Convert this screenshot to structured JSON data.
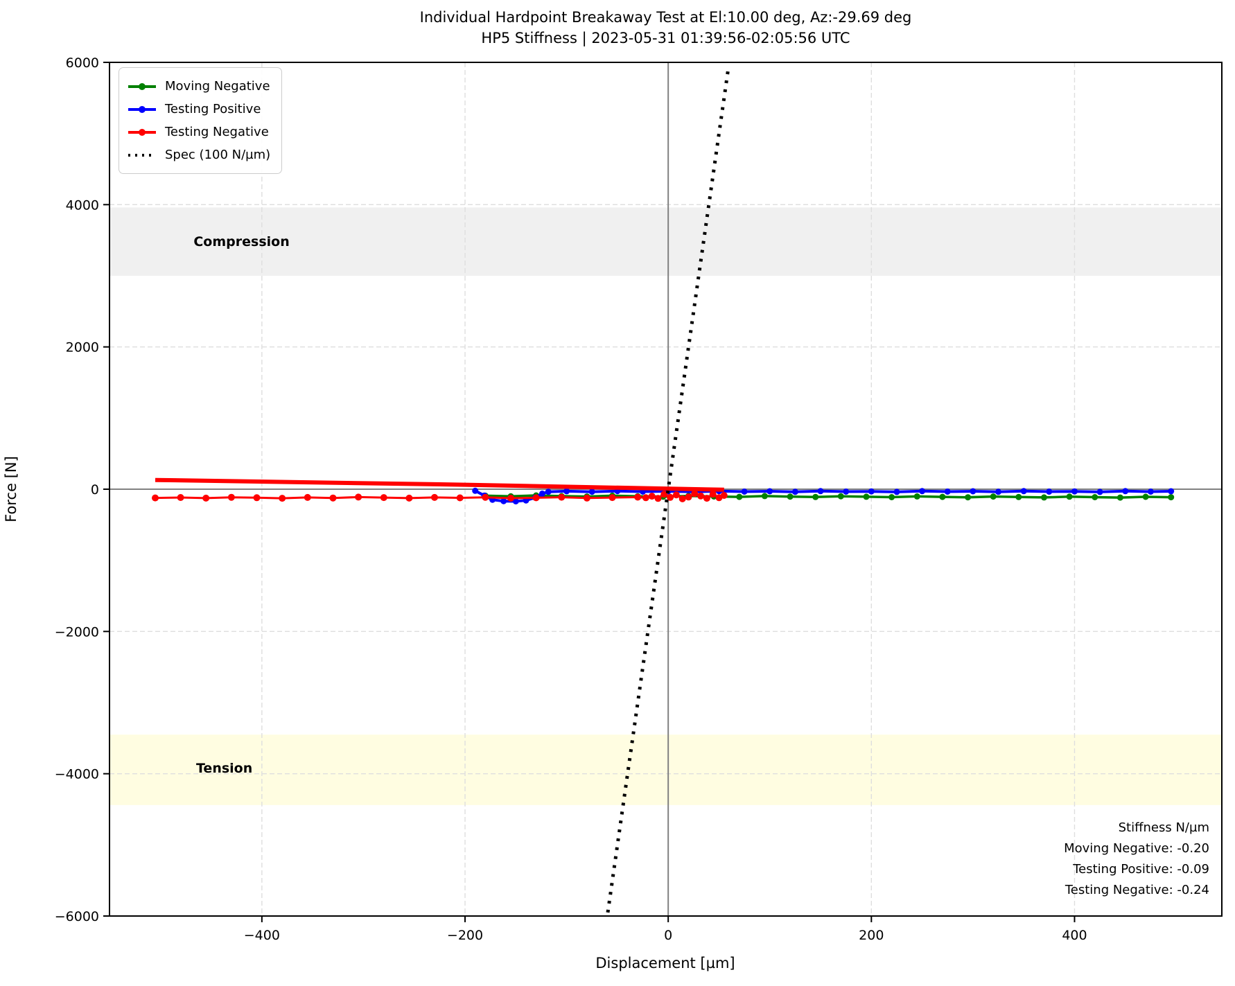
{
  "title": {
    "line1": "Individual Hardpoint Breakaway Test at El:10.00 deg, Az:-29.69 deg",
    "line2": "HP5 Stiffness | 2023-05-31 01:39:56-02:05:56 UTC"
  },
  "axes": {
    "xlabel": "Displacement [µm]",
    "ylabel": "Force [N]"
  },
  "legend": {
    "items": [
      {
        "label": "Moving Negative",
        "color": "#008000",
        "style": "line-marker"
      },
      {
        "label": "Testing Positive",
        "color": "#0000ff",
        "style": "line-marker"
      },
      {
        "label": "Testing Negative",
        "color": "#ff0000",
        "style": "line-marker"
      },
      {
        "label": "Spec (100 N/µm)",
        "color": "#000000",
        "style": "dotted"
      }
    ]
  },
  "annotations": {
    "stiffness_header": "Stiffness N/µm",
    "stiffness_lines": [
      "Moving Negative: -0.20",
      "Testing Positive: -0.09",
      "Testing Negative: -0.24"
    ],
    "compression_label": "Compression",
    "tension_label": "Tension"
  },
  "chart_data": {
    "type": "line",
    "title": "Individual Hardpoint Breakaway Test at El:10.00 deg, Az:-29.69 deg",
    "subtitle": "HP5 Stiffness | 2023-05-31 01:39:56-02:05:56 UTC",
    "xlabel": "Displacement [µm]",
    "ylabel": "Force [N]",
    "xlim": [
      -550,
      545
    ],
    "ylim": [
      -6000,
      6000
    ],
    "xticks": {
      "values": [
        -400,
        -200,
        0,
        200,
        400
      ],
      "labels": [
        "−400",
        "−200",
        "0",
        "200",
        "400"
      ]
    },
    "yticks": {
      "values": [
        -6000,
        -4000,
        -2000,
        0,
        2000,
        4000,
        6000
      ],
      "labels": [
        "−6000",
        "−4000",
        "−2000",
        "0",
        "2000",
        "4000",
        "6000"
      ]
    },
    "grid": {
      "on": true,
      "color": "#dedede",
      "dash": "7 4"
    },
    "zero_lines": {
      "color": "#808080",
      "width": 2
    },
    "bands": [
      {
        "name": "compression",
        "y1": 3000,
        "y2": 3960,
        "color": "#f0f0f0",
        "label": "Compression",
        "label_x": -420,
        "label_y": 3480
      },
      {
        "name": "tension",
        "y1": -4440,
        "y2": -3450,
        "color": "#fffde1",
        "label": "Tension",
        "label_x": -437,
        "label_y": -3930
      }
    ],
    "legend_position": "upper-left",
    "series": [
      {
        "name": "Moving Negative",
        "color": "#008000",
        "line_width": 3.5,
        "marker_radius": 4.5,
        "points": [
          [
            -180,
            -92
          ],
          [
            -155,
            -100
          ],
          [
            -130,
            -88
          ],
          [
            -105,
            -97
          ],
          [
            -80,
            -103
          ],
          [
            -55,
            -92
          ],
          [
            -30,
            -99
          ],
          [
            -5,
            -105
          ],
          [
            20,
            -95
          ],
          [
            45,
            -102
          ],
          [
            70,
            -108
          ],
          [
            95,
            -96
          ],
          [
            120,
            -104
          ],
          [
            145,
            -110
          ],
          [
            170,
            -99
          ],
          [
            195,
            -106
          ],
          [
            220,
            -112
          ],
          [
            245,
            -101
          ],
          [
            270,
            -108
          ],
          [
            295,
            -114
          ],
          [
            320,
            -103
          ],
          [
            345,
            -110
          ],
          [
            370,
            -116
          ],
          [
            395,
            -105
          ],
          [
            420,
            -112
          ],
          [
            445,
            -118
          ],
          [
            470,
            -107
          ],
          [
            495,
            -113
          ]
        ]
      },
      {
        "name": "Testing Positive",
        "color": "#0000ff",
        "line_width": 4,
        "marker_radius": 4.5,
        "points": [
          [
            -190,
            -22
          ],
          [
            -181,
            -90
          ],
          [
            -173,
            -148
          ],
          [
            -162,
            -168
          ],
          [
            -150,
            -170
          ],
          [
            -140,
            -158
          ],
          [
            -131,
            -118
          ],
          [
            -124,
            -62
          ],
          [
            -118,
            -36
          ],
          [
            -100,
            -28
          ],
          [
            -75,
            -36
          ],
          [
            -50,
            -26
          ],
          [
            -25,
            -34
          ],
          [
            0,
            -29
          ],
          [
            25,
            -37
          ],
          [
            50,
            -27
          ],
          [
            75,
            -34
          ],
          [
            100,
            -29
          ],
          [
            125,
            -37
          ],
          [
            150,
            -27
          ],
          [
            175,
            -34
          ],
          [
            200,
            -31
          ],
          [
            225,
            -38
          ],
          [
            250,
            -27
          ],
          [
            275,
            -34
          ],
          [
            300,
            -29
          ],
          [
            325,
            -37
          ],
          [
            350,
            -27
          ],
          [
            375,
            -34
          ],
          [
            400,
            -31
          ],
          [
            425,
            -38
          ],
          [
            450,
            -27
          ],
          [
            475,
            -34
          ],
          [
            495,
            -29
          ]
        ]
      },
      {
        "name": "Testing Negative (outbound)",
        "color": "#ff0000",
        "line_width": 3,
        "marker_radius": 5,
        "points": [
          [
            55,
            -88
          ],
          [
            50,
            -120
          ],
          [
            44,
            -70
          ],
          [
            38,
            -128
          ],
          [
            32,
            -95
          ],
          [
            26,
            -62
          ],
          [
            20,
            -110
          ],
          [
            14,
            -135
          ],
          [
            8,
            -80
          ],
          [
            2,
            -115
          ],
          [
            -4,
            -70
          ],
          [
            -10,
            -130
          ],
          [
            -16,
            -98
          ],
          [
            -22,
            -120
          ],
          [
            -30,
            -112
          ],
          [
            -55,
            -118
          ],
          [
            -80,
            -125
          ],
          [
            -105,
            -113
          ],
          [
            -130,
            -121
          ],
          [
            -155,
            -127
          ],
          [
            -180,
            -114
          ],
          [
            -205,
            -122
          ],
          [
            -230,
            -116
          ],
          [
            -255,
            -126
          ],
          [
            -280,
            -118
          ],
          [
            -305,
            -111
          ],
          [
            -330,
            -124
          ],
          [
            -355,
            -116
          ],
          [
            -380,
            -128
          ],
          [
            -405,
            -120
          ],
          [
            -430,
            -114
          ],
          [
            -455,
            -126
          ],
          [
            -480,
            -117
          ],
          [
            -505,
            -123
          ]
        ]
      },
      {
        "name": "Testing Negative (return)",
        "color": "#ff0000",
        "line_width": 6,
        "marker_radius": 0,
        "points": [
          [
            -505,
            130
          ],
          [
            -200,
            62
          ],
          [
            55,
            -8
          ]
        ]
      },
      {
        "name": "Spec (100 N/µm)",
        "color": "#000000",
        "line_width": 5,
        "marker_radius": 0,
        "dotted": true,
        "points": [
          [
            -59.5,
            -5950
          ],
          [
            59.5,
            5950
          ]
        ]
      }
    ],
    "stiffness_annotation": {
      "header": "Stiffness N/µm",
      "values": [
        {
          "name": "Moving Negative",
          "value": -0.2
        },
        {
          "name": "Testing Positive",
          "value": -0.09
        },
        {
          "name": "Testing Negative",
          "value": -0.24
        }
      ]
    }
  }
}
